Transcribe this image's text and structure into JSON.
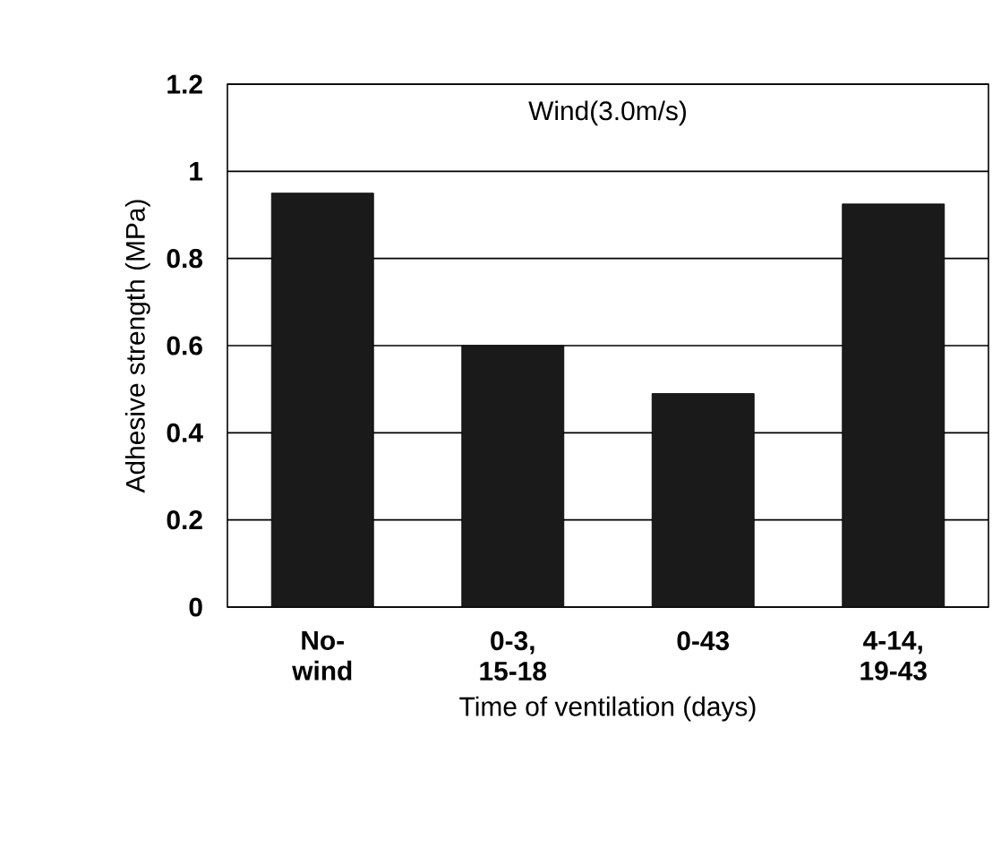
{
  "chart_data": {
    "type": "bar",
    "title": "Wind(3.0m/s)",
    "xlabel": "Time of ventilation (days)",
    "ylabel": "Adhesive strength (MPa)",
    "categories": [
      "No-wind",
      "0-3, 15-18",
      "0-43",
      "4-14, 19-43"
    ],
    "values": [
      0.95,
      0.6,
      0.49,
      0.925
    ],
    "color": "#1a1a1a",
    "ylim": [
      0,
      1.2
    ],
    "yticks": [
      0,
      0.2,
      0.4,
      0.6,
      0.8,
      1,
      1.2
    ],
    "grid": "y"
  }
}
